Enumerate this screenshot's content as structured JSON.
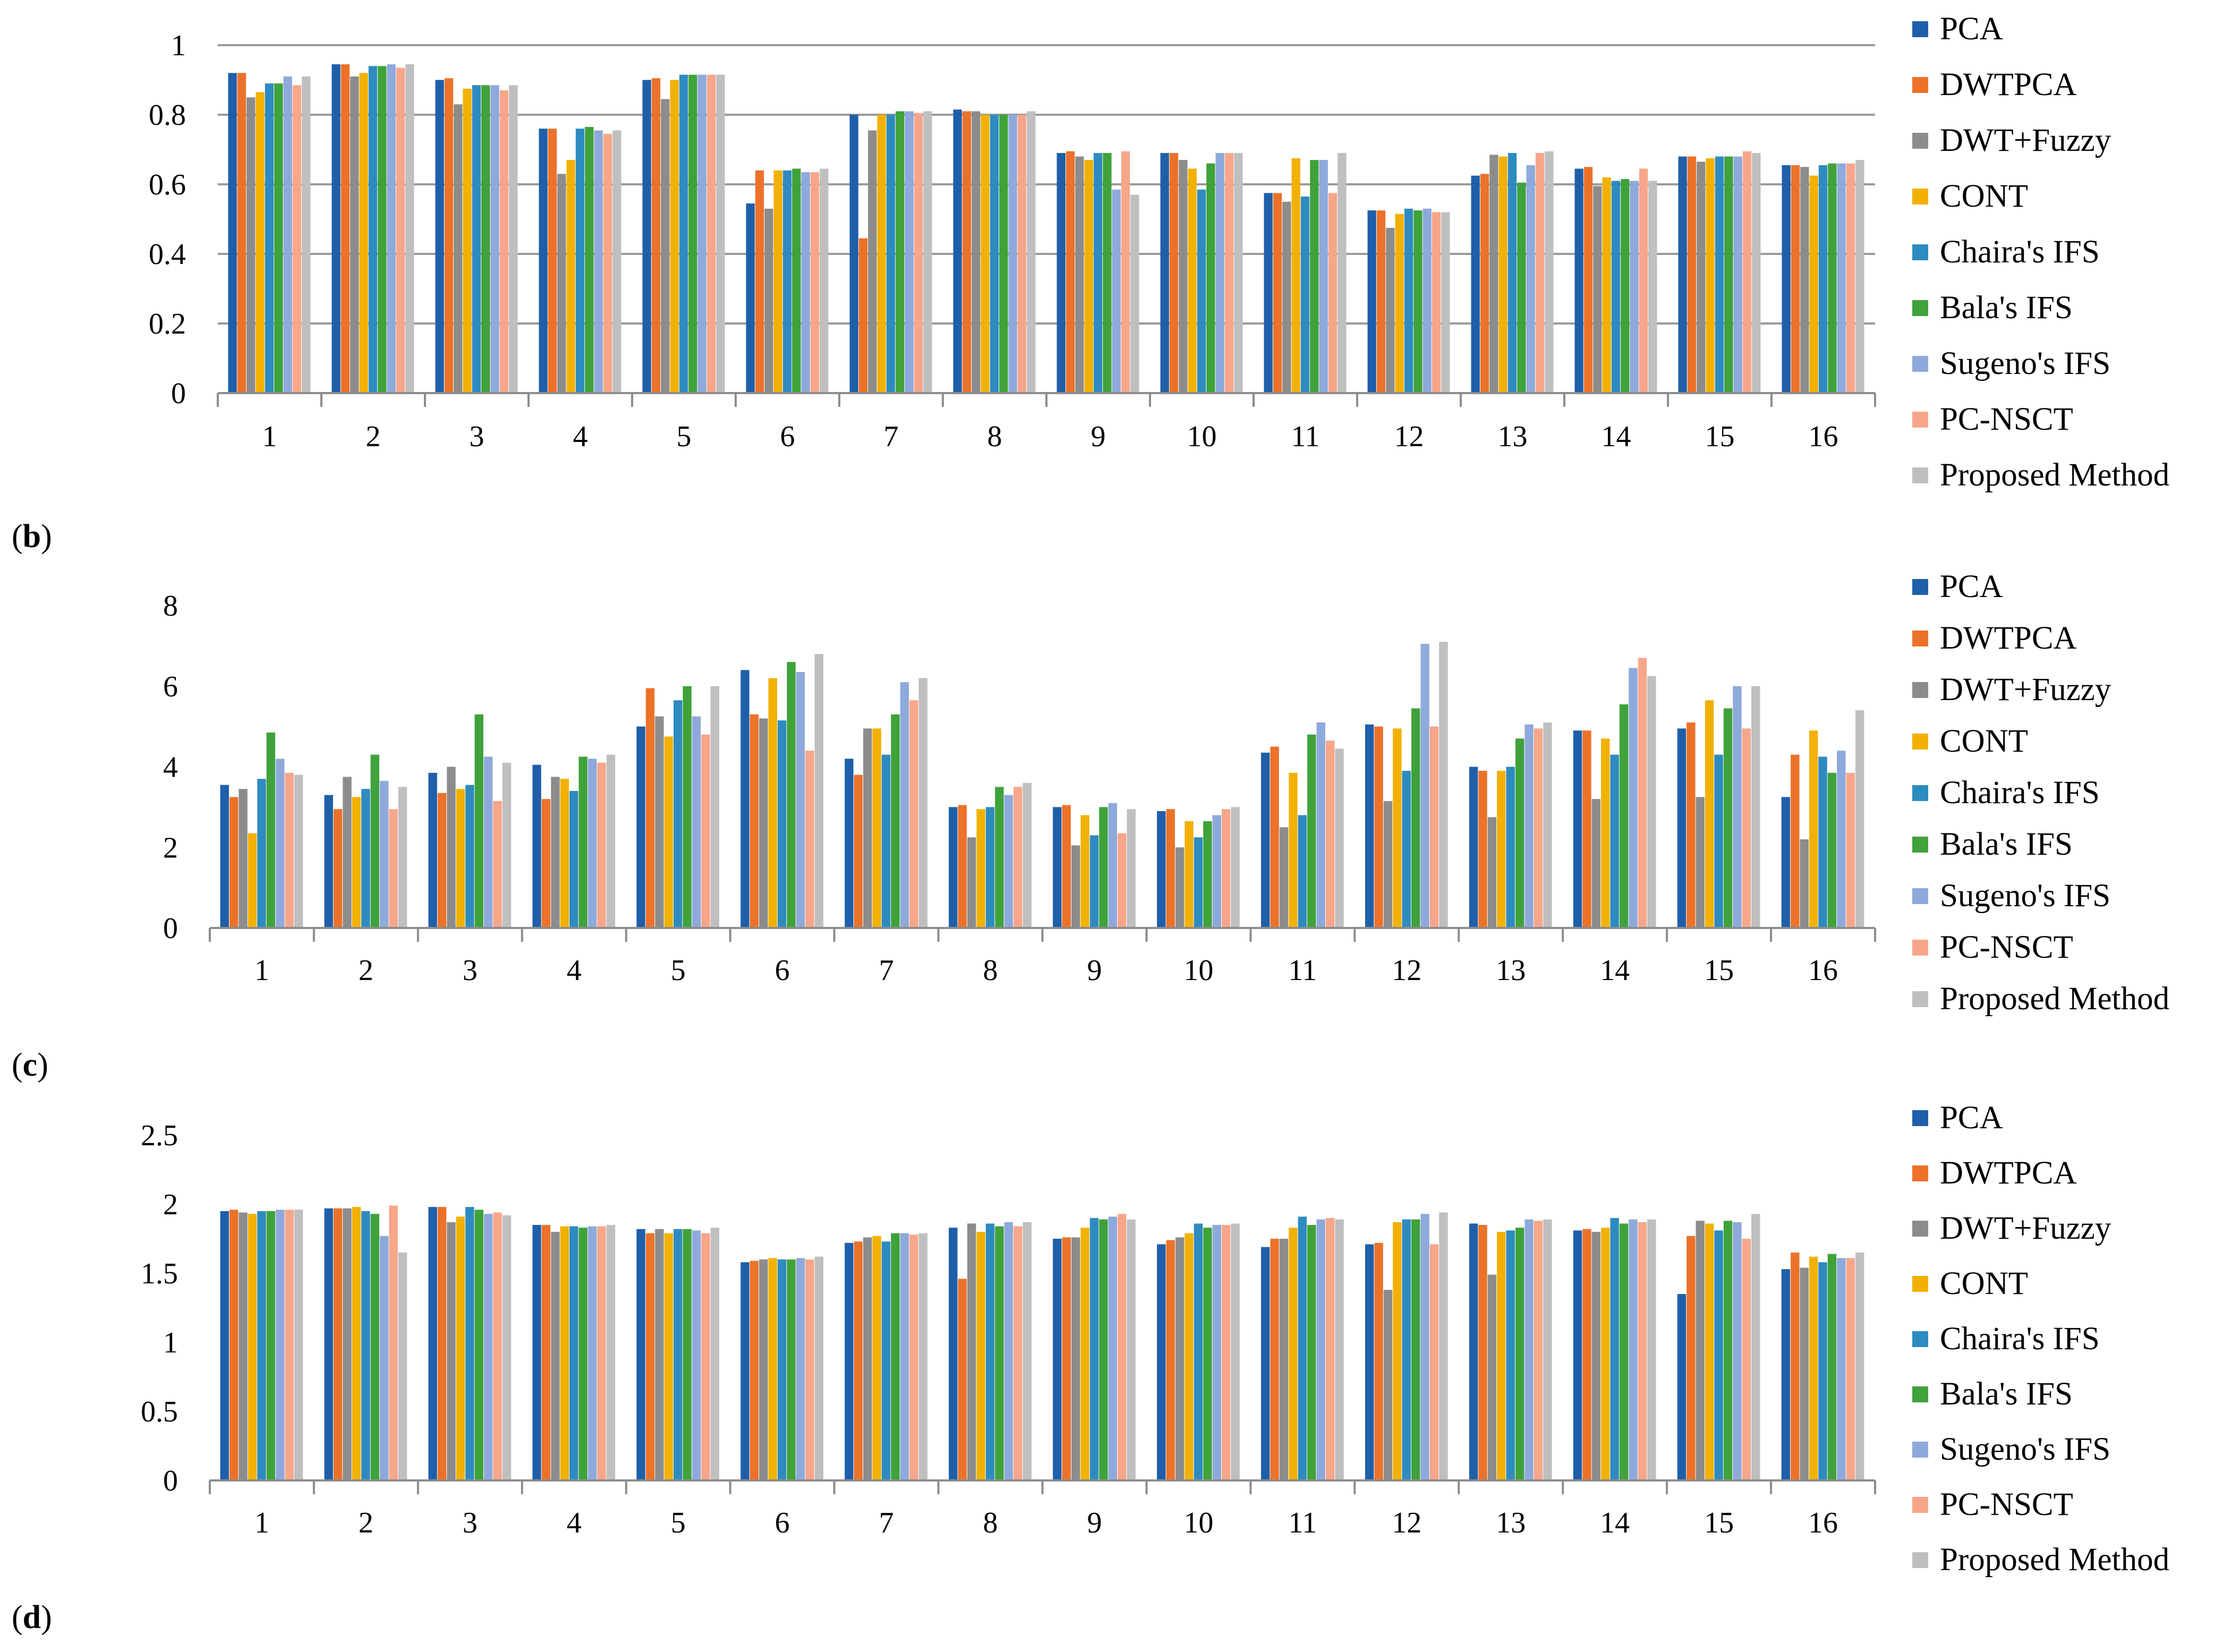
{
  "series_names": [
    "PCA",
    "DWTPCA",
    "DWT+Fuzzy",
    "CONT",
    "Chaira's IFS",
    "Bala's IFS",
    "Sugeno's IFS",
    "PC-NSCT",
    "Proposed Method"
  ],
  "series_colors": [
    "#1F5FAA",
    "#EC7229",
    "#8C8C8C",
    "#F2B100",
    "#2E8BC0",
    "#3FA23A",
    "#8EA9DB",
    "#F7A68A",
    "#BFBFBF"
  ],
  "chart_data": [
    {
      "panel_label": "b",
      "type": "bar",
      "categories": [
        "1",
        "2",
        "3",
        "4",
        "5",
        "6",
        "7",
        "8",
        "9",
        "10",
        "11",
        "12",
        "13",
        "14",
        "15",
        "16"
      ],
      "ylim": [
        0,
        1
      ],
      "yticks": [
        "0",
        "0.2",
        "0.4",
        "0.6",
        "0.8",
        "1"
      ],
      "ytick_values": [
        0,
        0.2,
        0.4,
        0.6,
        0.8,
        1
      ],
      "grid": true,
      "legend": "right",
      "series": [
        {
          "name": "PCA",
          "values": [
            0.92,
            0.945,
            0.9,
            0.76,
            0.9,
            0.545,
            0.8,
            0.815,
            0.69,
            0.69,
            0.575,
            0.525,
            0.625,
            0.645,
            0.68,
            0.655
          ]
        },
        {
          "name": "DWTPCA",
          "values": [
            0.92,
            0.945,
            0.905,
            0.76,
            0.905,
            0.64,
            0.445,
            0.81,
            0.695,
            0.69,
            0.575,
            0.525,
            0.63,
            0.65,
            0.68,
            0.655
          ]
        },
        {
          "name": "DWT+Fuzzy",
          "values": [
            0.85,
            0.91,
            0.83,
            0.63,
            0.845,
            0.53,
            0.755,
            0.81,
            0.68,
            0.67,
            0.55,
            0.475,
            0.685,
            0.595,
            0.665,
            0.65
          ]
        },
        {
          "name": "CONT",
          "values": [
            0.865,
            0.92,
            0.875,
            0.67,
            0.9,
            0.64,
            0.8,
            0.8,
            0.67,
            0.645,
            0.675,
            0.515,
            0.68,
            0.62,
            0.675,
            0.625
          ]
        },
        {
          "name": "Chaira's IFS",
          "values": [
            0.89,
            0.94,
            0.885,
            0.76,
            0.915,
            0.64,
            0.8,
            0.8,
            0.69,
            0.585,
            0.565,
            0.53,
            0.69,
            0.61,
            0.68,
            0.655
          ]
        },
        {
          "name": "Bala's IFS",
          "values": [
            0.89,
            0.94,
            0.885,
            0.765,
            0.915,
            0.645,
            0.81,
            0.8,
            0.69,
            0.66,
            0.67,
            0.525,
            0.605,
            0.615,
            0.68,
            0.66
          ]
        },
        {
          "name": "Sugeno's IFS",
          "values": [
            0.91,
            0.945,
            0.885,
            0.755,
            0.915,
            0.635,
            0.81,
            0.8,
            0.585,
            0.69,
            0.67,
            0.53,
            0.655,
            0.61,
            0.68,
            0.66
          ]
        },
        {
          "name": "PC-NSCT",
          "values": [
            0.885,
            0.935,
            0.87,
            0.745,
            0.915,
            0.635,
            0.805,
            0.8,
            0.695,
            0.69,
            0.575,
            0.52,
            0.69,
            0.645,
            0.695,
            0.66
          ]
        },
        {
          "name": "Proposed Method",
          "values": [
            0.91,
            0.945,
            0.885,
            0.755,
            0.915,
            0.645,
            0.81,
            0.81,
            0.57,
            0.69,
            0.69,
            0.52,
            0.695,
            0.61,
            0.69,
            0.67
          ]
        }
      ]
    },
    {
      "panel_label": "c",
      "type": "bar",
      "categories": [
        "1",
        "2",
        "3",
        "4",
        "5",
        "6",
        "7",
        "8",
        "9",
        "10",
        "11",
        "12",
        "13",
        "14",
        "15",
        "16"
      ],
      "ylim": [
        0,
        8
      ],
      "yticks": [
        "0",
        "2",
        "4",
        "6",
        "8"
      ],
      "ytick_values": [
        0,
        2,
        4,
        6,
        8
      ],
      "grid": false,
      "legend": "right",
      "series": [
        {
          "name": "PCA",
          "values": [
            3.55,
            3.3,
            3.85,
            4.05,
            5.0,
            6.4,
            4.2,
            3.0,
            3.0,
            2.9,
            4.35,
            5.05,
            4.0,
            4.9,
            4.95,
            3.25
          ]
        },
        {
          "name": "DWTPCA",
          "values": [
            3.25,
            2.95,
            3.35,
            3.2,
            5.95,
            5.3,
            3.8,
            3.05,
            3.05,
            2.95,
            4.5,
            5.0,
            3.9,
            4.9,
            5.1,
            4.3
          ]
        },
        {
          "name": "DWT+Fuzzy",
          "values": [
            3.45,
            3.75,
            4.0,
            3.75,
            5.25,
            5.2,
            4.95,
            2.25,
            2.05,
            2.0,
            2.5,
            3.15,
            2.75,
            3.2,
            3.25,
            2.2
          ]
        },
        {
          "name": "CONT",
          "values": [
            2.35,
            3.25,
            3.45,
            3.7,
            4.75,
            6.2,
            4.95,
            2.95,
            2.8,
            2.65,
            3.85,
            4.95,
            3.9,
            4.7,
            5.65,
            4.9
          ]
        },
        {
          "name": "Chaira's IFS",
          "values": [
            3.7,
            3.45,
            3.55,
            3.4,
            5.65,
            5.15,
            4.3,
            3.0,
            2.3,
            2.25,
            2.8,
            3.9,
            4.0,
            4.3,
            4.3,
            4.25
          ]
        },
        {
          "name": "Bala's IFS",
          "values": [
            4.85,
            4.3,
            5.3,
            4.25,
            6.0,
            6.6,
            5.3,
            3.5,
            3.0,
            2.65,
            4.8,
            5.45,
            4.7,
            5.55,
            5.45,
            3.85
          ]
        },
        {
          "name": "Sugeno's IFS",
          "values": [
            4.2,
            3.65,
            4.25,
            4.2,
            5.25,
            6.35,
            6.1,
            3.3,
            3.1,
            2.8,
            5.1,
            7.05,
            5.05,
            6.45,
            6.0,
            4.4
          ]
        },
        {
          "name": "PC-NSCT",
          "values": [
            3.85,
            2.95,
            3.15,
            4.1,
            4.8,
            4.4,
            5.65,
            3.5,
            2.35,
            2.95,
            4.65,
            5.0,
            4.95,
            6.7,
            4.95,
            3.85
          ]
        },
        {
          "name": "Proposed Method",
          "values": [
            3.8,
            3.5,
            4.1,
            4.3,
            6.0,
            6.8,
            6.2,
            3.6,
            2.95,
            3.0,
            4.45,
            7.1,
            5.1,
            6.25,
            6.0,
            5.4
          ]
        }
      ]
    },
    {
      "panel_label": "d",
      "type": "bar",
      "categories": [
        "1",
        "2",
        "3",
        "4",
        "5",
        "6",
        "7",
        "8",
        "9",
        "10",
        "11",
        "12",
        "13",
        "14",
        "15",
        "16"
      ],
      "ylim": [
        0,
        2.5
      ],
      "yticks": [
        "0",
        "0.5",
        "1",
        "1.5",
        "2",
        "2.5"
      ],
      "ytick_values": [
        0,
        0.5,
        1,
        1.5,
        2,
        2.5
      ],
      "grid": false,
      "legend": "right",
      "series": [
        {
          "name": "PCA",
          "values": [
            1.95,
            1.97,
            1.98,
            1.85,
            1.82,
            1.58,
            1.72,
            1.83,
            1.75,
            1.71,
            1.69,
            1.71,
            1.86,
            1.81,
            1.35,
            1.53
          ]
        },
        {
          "name": "DWTPCA",
          "values": [
            1.96,
            1.97,
            1.98,
            1.85,
            1.79,
            1.59,
            1.73,
            1.46,
            1.76,
            1.74,
            1.75,
            1.72,
            1.85,
            1.82,
            1.77,
            1.65
          ]
        },
        {
          "name": "DWT+Fuzzy",
          "values": [
            1.94,
            1.97,
            1.87,
            1.8,
            1.82,
            1.6,
            1.76,
            1.86,
            1.76,
            1.76,
            1.75,
            1.38,
            1.49,
            1.8,
            1.88,
            1.54
          ]
        },
        {
          "name": "CONT",
          "values": [
            1.93,
            1.98,
            1.91,
            1.84,
            1.79,
            1.61,
            1.77,
            1.8,
            1.83,
            1.79,
            1.83,
            1.87,
            1.8,
            1.83,
            1.86,
            1.62
          ]
        },
        {
          "name": "Chaira's IFS",
          "values": [
            1.95,
            1.95,
            1.98,
            1.84,
            1.82,
            1.6,
            1.73,
            1.86,
            1.9,
            1.86,
            1.91,
            1.89,
            1.81,
            1.9,
            1.81,
            1.58
          ]
        },
        {
          "name": "Bala's IFS",
          "values": [
            1.95,
            1.93,
            1.96,
            1.83,
            1.82,
            1.6,
            1.79,
            1.84,
            1.89,
            1.83,
            1.85,
            1.89,
            1.83,
            1.86,
            1.88,
            1.64
          ]
        },
        {
          "name": "Sugeno's IFS",
          "values": [
            1.96,
            1.77,
            1.93,
            1.84,
            1.81,
            1.61,
            1.79,
            1.87,
            1.91,
            1.85,
            1.89,
            1.93,
            1.89,
            1.89,
            1.87,
            1.61
          ]
        },
        {
          "name": "PC-NSCT",
          "values": [
            1.96,
            1.99,
            1.94,
            1.84,
            1.79,
            1.6,
            1.78,
            1.84,
            1.93,
            1.85,
            1.9,
            1.71,
            1.88,
            1.87,
            1.75,
            1.61
          ]
        },
        {
          "name": "Proposed Method",
          "values": [
            1.96,
            1.65,
            1.92,
            1.85,
            1.83,
            1.62,
            1.79,
            1.87,
            1.89,
            1.86,
            1.89,
            1.94,
            1.89,
            1.89,
            1.93,
            1.65
          ]
        }
      ]
    }
  ]
}
